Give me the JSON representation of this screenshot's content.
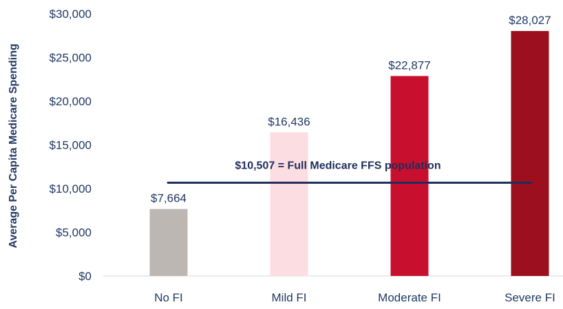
{
  "chart_data": {
    "type": "bar",
    "title": "",
    "xlabel": "",
    "ylabel": "Average Per Capita Medicare Spending",
    "ylim": [
      0,
      30000
    ],
    "yticks": [
      0,
      5000,
      10000,
      15000,
      20000,
      25000,
      30000
    ],
    "ytick_labels": [
      "$0",
      "$5,000",
      "$10,000",
      "$15,000",
      "$20,000",
      "$25,000",
      "$30,000"
    ],
    "categories": [
      "No FI",
      "Mild FI",
      "Moderate FI",
      "Severe FI"
    ],
    "values": [
      7664,
      16436,
      22877,
      28027
    ],
    "data_labels": [
      "$7,664",
      "$16,436",
      "$22,877",
      "$28,027"
    ],
    "colors": [
      "#bdb7b4",
      "#fcdde2",
      "#c8102e",
      "#9b0f1e"
    ],
    "reference_line": {
      "value": 10507,
      "label": "$10,507 = Full Medicare FFS population",
      "color": "#1f2d5c"
    },
    "grid": false,
    "legend": "none"
  }
}
